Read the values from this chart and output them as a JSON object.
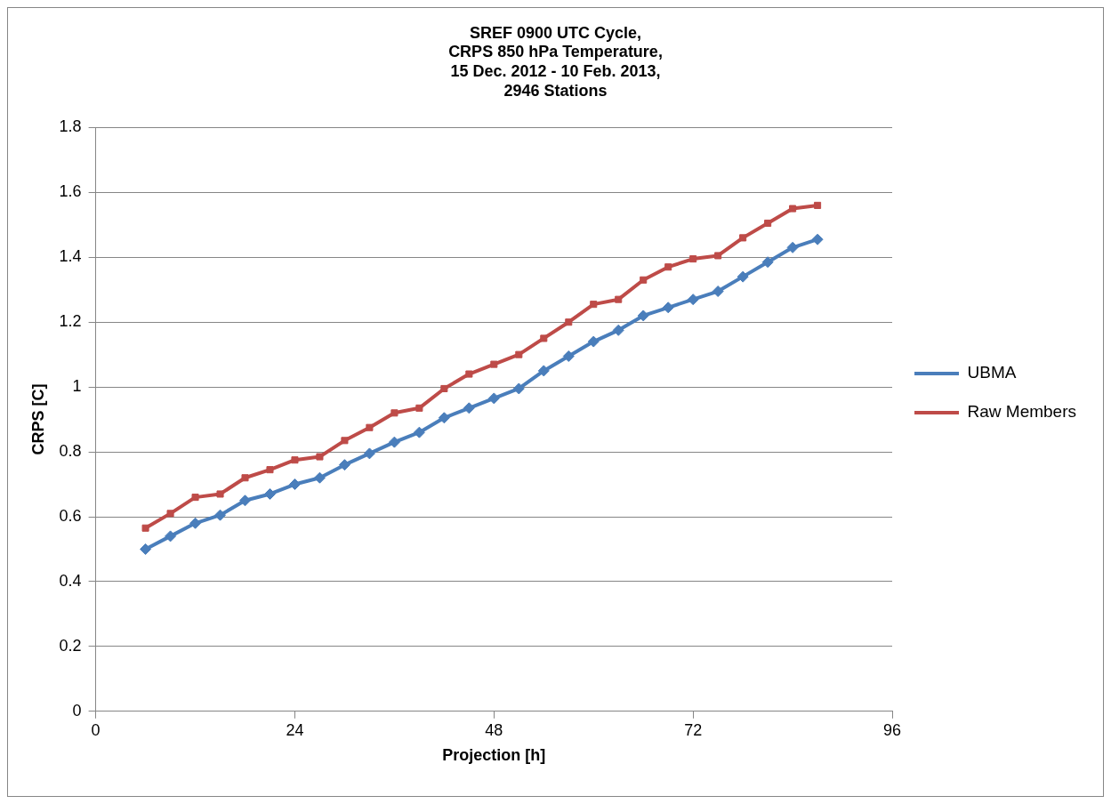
{
  "chart_data": {
    "type": "line",
    "title": "SREF 0900 UTC Cycle,\nCRPS 850 hPa Temperature,\n15 Dec. 2012 - 10 Feb. 2013,\n2946 Stations",
    "xlabel": "Projection [h]",
    "ylabel": "CRPS [C]",
    "x": [
      6,
      9,
      12,
      15,
      18,
      21,
      24,
      27,
      30,
      33,
      36,
      39,
      42,
      45,
      48,
      51,
      54,
      57,
      60,
      63,
      66,
      69,
      72,
      75,
      78,
      81,
      84,
      87
    ],
    "series": [
      {
        "name": "UBMA",
        "color": "#4a7ebb",
        "marker": "diamond",
        "values": [
          0.5,
          0.54,
          0.58,
          0.605,
          0.65,
          0.67,
          0.7,
          0.72,
          0.76,
          0.795,
          0.83,
          0.86,
          0.905,
          0.935,
          0.965,
          0.995,
          1.05,
          1.095,
          1.14,
          1.175,
          1.22,
          1.245,
          1.27,
          1.295,
          1.34,
          1.385,
          1.43,
          1.455
        ]
      },
      {
        "name": "Raw Members",
        "color": "#be4b48",
        "marker": "square",
        "values": [
          0.565,
          0.61,
          0.66,
          0.67,
          0.72,
          0.745,
          0.775,
          0.785,
          0.835,
          0.875,
          0.92,
          0.935,
          0.995,
          1.04,
          1.07,
          1.1,
          1.15,
          1.2,
          1.255,
          1.27,
          1.33,
          1.37,
          1.395,
          1.405,
          1.46,
          1.505,
          1.55,
          1.56
        ]
      }
    ],
    "xlim": [
      0,
      96
    ],
    "xticks": [
      0,
      24,
      48,
      72,
      96
    ],
    "ylim": [
      0,
      1.8
    ],
    "yticks": [
      0,
      0.2,
      0.4,
      0.6,
      0.8,
      1,
      1.2,
      1.4,
      1.6,
      1.8
    ],
    "grid": "y",
    "legend": "right",
    "line_style": "solid"
  }
}
